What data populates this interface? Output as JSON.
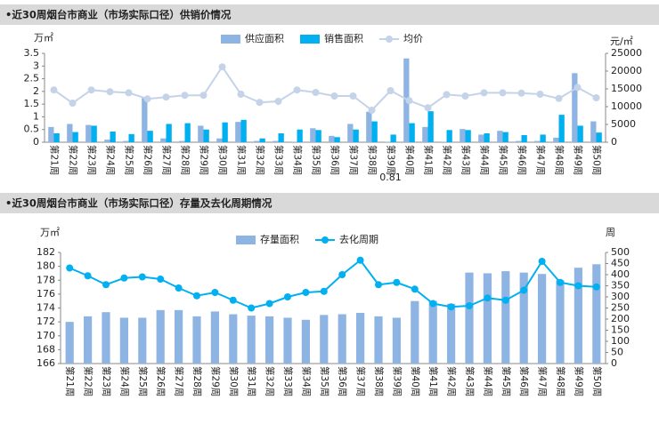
{
  "chart_data": [
    {
      "type": "combo",
      "title": "•近30周烟台市商业（市场实际口径）供销价情况",
      "y_label": "万㎡",
      "y2_label": "元/㎡",
      "annotation": "0.81",
      "categories": [
        "第21周",
        "第22周",
        "第23周",
        "第24周",
        "第25周",
        "第26周",
        "第27周",
        "第28周",
        "第29周",
        "第30周",
        "第31周",
        "第32周",
        "第33周",
        "第34周",
        "第35周",
        "第36周",
        "第37周",
        "第38周",
        "第39周",
        "第40周",
        "第41周",
        "第42周",
        "第43周",
        "第44周",
        "第45周",
        "第46周",
        "第47周",
        "第48周",
        "第49周",
        "第50周"
      ],
      "series": [
        {
          "name": "供应面积",
          "type": "bar",
          "color": "#8eb4e3",
          "axis": "y",
          "values": [
            0.6,
            0.72,
            0.68,
            0.1,
            0.05,
            1.75,
            0.15,
            0.05,
            0.65,
            0.15,
            0.8,
            0.05,
            0.05,
            0.02,
            0.55,
            0.25,
            0.72,
            1.2,
            0.02,
            3.3,
            0.6,
            0.02,
            0.52,
            0.3,
            0.45,
            0.05,
            0.05,
            0.18,
            2.72,
            0.82
          ]
        },
        {
          "name": "销售面积",
          "type": "bar",
          "color": "#00b0f0",
          "axis": "y",
          "values": [
            0.35,
            0.4,
            0.65,
            0.42,
            0.32,
            0.45,
            0.72,
            0.75,
            0.5,
            0.78,
            0.88,
            0.15,
            0.35,
            0.5,
            0.48,
            0.2,
            0.5,
            0.82,
            0.3,
            0.75,
            1.22,
            0.48,
            0.48,
            0.35,
            0.4,
            0.28,
            0.3,
            1.08,
            0.65,
            0.38
          ]
        },
        {
          "name": "均价",
          "type": "line",
          "color": "#c5d3e8",
          "axis": "y2",
          "values": [
            14700,
            11000,
            14700,
            14200,
            13900,
            12200,
            12700,
            13200,
            13200,
            21200,
            13500,
            11200,
            11500,
            14700,
            14000,
            13000,
            13000,
            9000,
            14500,
            11700,
            9700,
            13400,
            13000,
            13900,
            13900,
            13800,
            13500,
            12300,
            15400,
            12500
          ]
        }
      ],
      "ylim": [
        0,
        3.5
      ],
      "yticks": [
        0,
        0.5,
        1,
        1.5,
        2,
        2.5,
        3,
        3.5
      ],
      "y2lim": [
        0,
        25000
      ],
      "y2ticks": [
        0,
        5000,
        10000,
        15000,
        20000,
        25000
      ],
      "grid": false,
      "legend": "top"
    },
    {
      "type": "combo",
      "title": "•近30周烟台市商业（市场实际口径）存量及去化周期情况",
      "y_label": "万㎡",
      "y2_label": "周",
      "categories": [
        "第21周",
        "第22周",
        "第23周",
        "第24周",
        "第25周",
        "第26周",
        "第27周",
        "第28周",
        "第29周",
        "第30周",
        "第31周",
        "第32周",
        "第33周",
        "第34周",
        "第35周",
        "第36周",
        "第37周",
        "第38周",
        "第39周",
        "第40周",
        "第41周",
        "第42周",
        "第43周",
        "第44周",
        "第45周",
        "第46周",
        "第47周",
        "第48周",
        "第49周",
        "第50周"
      ],
      "series": [
        {
          "name": "存量面积",
          "type": "bar",
          "color": "#8eb4e3",
          "axis": "y",
          "values": [
            172.0,
            172.8,
            173.4,
            172.6,
            172.6,
            173.7,
            173.7,
            172.8,
            173.5,
            173.1,
            172.9,
            172.8,
            172.6,
            172.3,
            173.0,
            173.1,
            173.3,
            172.8,
            172.6,
            175.0,
            175.0,
            174.6,
            179.1,
            179.0,
            179.3,
            179.1,
            178.9,
            178.0,
            179.8,
            180.3
          ]
        },
        {
          "name": "去化周期",
          "type": "line",
          "color": "#00b0f0",
          "axis": "y2",
          "values": [
            430,
            395,
            355,
            385,
            390,
            380,
            340,
            305,
            320,
            285,
            250,
            270,
            300,
            320,
            325,
            400,
            465,
            355,
            365,
            335,
            270,
            255,
            260,
            295,
            285,
            330,
            460,
            365,
            350,
            345
          ]
        }
      ],
      "ylim": [
        166,
        182
      ],
      "yticks": [
        166,
        168,
        170,
        172,
        174,
        176,
        178,
        180,
        182
      ],
      "y2lim": [
        0,
        500
      ],
      "y2ticks": [
        0,
        50,
        100,
        150,
        200,
        250,
        300,
        350,
        400,
        450,
        500
      ],
      "grid": false,
      "legend": "top"
    }
  ]
}
